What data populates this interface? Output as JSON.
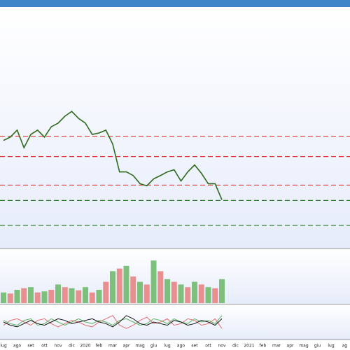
{
  "chart_data": [
    {
      "type": "line",
      "categories": [
        "lug",
        null,
        "ago",
        null,
        "set",
        null,
        "ott",
        null,
        "nov",
        null,
        "dic",
        null,
        "2020",
        null,
        "feb",
        null,
        "mar",
        null,
        "apr",
        null,
        "mag",
        null,
        "giu",
        null,
        "lug",
        null,
        "ago",
        null,
        "set",
        null,
        "ott",
        null,
        "nov",
        null,
        "dic",
        null,
        "2021",
        null,
        "feb",
        null,
        "mar",
        null,
        "apr",
        null,
        "mag",
        null,
        "giu",
        null,
        "lug",
        null,
        "ag",
        null
      ],
      "series": [
        {
          "color": "#2d6a1e",
          "values": [
            45,
            46.4,
            49.3,
            42,
            47.5,
            49.3,
            46.4,
            50.7,
            52.2,
            55.1,
            57.1,
            54.2,
            52.2,
            47.5,
            48.1,
            49.3,
            43.5,
            31.9,
            31.9,
            30.4,
            27,
            26.1,
            29,
            30.4,
            31.9,
            32.8,
            28.1,
            31.9,
            34.8,
            31.3,
            27,
            27,
            20.3,
            null,
            null,
            null,
            null,
            null,
            null,
            null,
            null,
            null,
            null,
            null,
            null,
            null,
            null,
            null,
            null,
            null,
            null,
            null
          ]
        }
      ],
      "ylim": [
        0,
        100
      ],
      "levels": [
        {
          "value": 46.7,
          "color": "#e03030"
        },
        {
          "value": 38.3,
          "color": "#e03030"
        },
        {
          "value": 26.4,
          "color": "#e03030"
        },
        {
          "value": 20,
          "color": "#2a7a2a"
        },
        {
          "value": 9.6,
          "color": "#2a7a2a"
        }
      ]
    },
    {
      "type": "bar",
      "ylim": [
        0,
        100
      ],
      "series": [
        {
          "color": "#7cc07c",
          "values": [
            20,
            null,
            25,
            null,
            30,
            null,
            22,
            null,
            35,
            null,
            28,
            null,
            30,
            null,
            25,
            null,
            60,
            null,
            70,
            null,
            40,
            null,
            80,
            null,
            45,
            null,
            35,
            null,
            40,
            null,
            30,
            null,
            45,
            null,
            null,
            null,
            null,
            null,
            null,
            null,
            null,
            null,
            null,
            null,
            null,
            null,
            null,
            null,
            null,
            null,
            null,
            null
          ]
        },
        {
          "color": "#e89090",
          "values": [
            null,
            18,
            null,
            28,
            null,
            20,
            null,
            25,
            null,
            30,
            null,
            24,
            null,
            20,
            null,
            40,
            null,
            65,
            null,
            50,
            null,
            35,
            null,
            60,
            null,
            40,
            null,
            30,
            null,
            35,
            null,
            28,
            null,
            null,
            null,
            null,
            null,
            null,
            null,
            null,
            null,
            null,
            null,
            null,
            null,
            null,
            null,
            null,
            null,
            null,
            null,
            null
          ]
        }
      ]
    },
    {
      "type": "line",
      "ylim": [
        0,
        100
      ],
      "series": [
        {
          "color": "#e07070",
          "values": [
            40,
            55,
            60,
            50,
            40,
            55,
            60,
            45,
            35,
            45,
            55,
            50,
            40,
            35,
            50,
            60,
            70,
            40,
            30,
            40,
            55,
            65,
            45,
            50,
            60,
            40,
            45,
            60,
            55,
            40,
            45,
            60,
            30,
            null,
            null,
            null,
            null,
            null,
            null,
            null,
            null,
            null,
            null,
            null,
            null,
            null,
            null,
            null,
            null,
            null,
            null,
            null
          ]
        },
        {
          "color": "#60b060",
          "values": [
            55,
            45,
            40,
            55,
            60,
            40,
            45,
            60,
            50,
            40,
            50,
            60,
            50,
            45,
            55,
            50,
            40,
            55,
            60,
            50,
            40,
            45,
            60,
            55,
            45,
            60,
            50,
            45,
            60,
            50,
            55,
            45,
            70,
            null,
            null,
            null,
            null,
            null,
            null,
            null,
            null,
            null,
            null,
            null,
            null,
            null,
            null,
            null,
            null,
            null,
            null,
            null
          ]
        },
        {
          "color": "#111111",
          "values": [
            50,
            40,
            35,
            45,
            55,
            45,
            40,
            50,
            60,
            55,
            45,
            50,
            55,
            60,
            50,
            45,
            35,
            50,
            70,
            60,
            45,
            40,
            50,
            45,
            40,
            55,
            50,
            40,
            45,
            55,
            50,
            40,
            60,
            null,
            null,
            null,
            null,
            null,
            null,
            null,
            null,
            null,
            null,
            null,
            null,
            null,
            null,
            null,
            null,
            null,
            null,
            null
          ]
        }
      ]
    }
  ]
}
